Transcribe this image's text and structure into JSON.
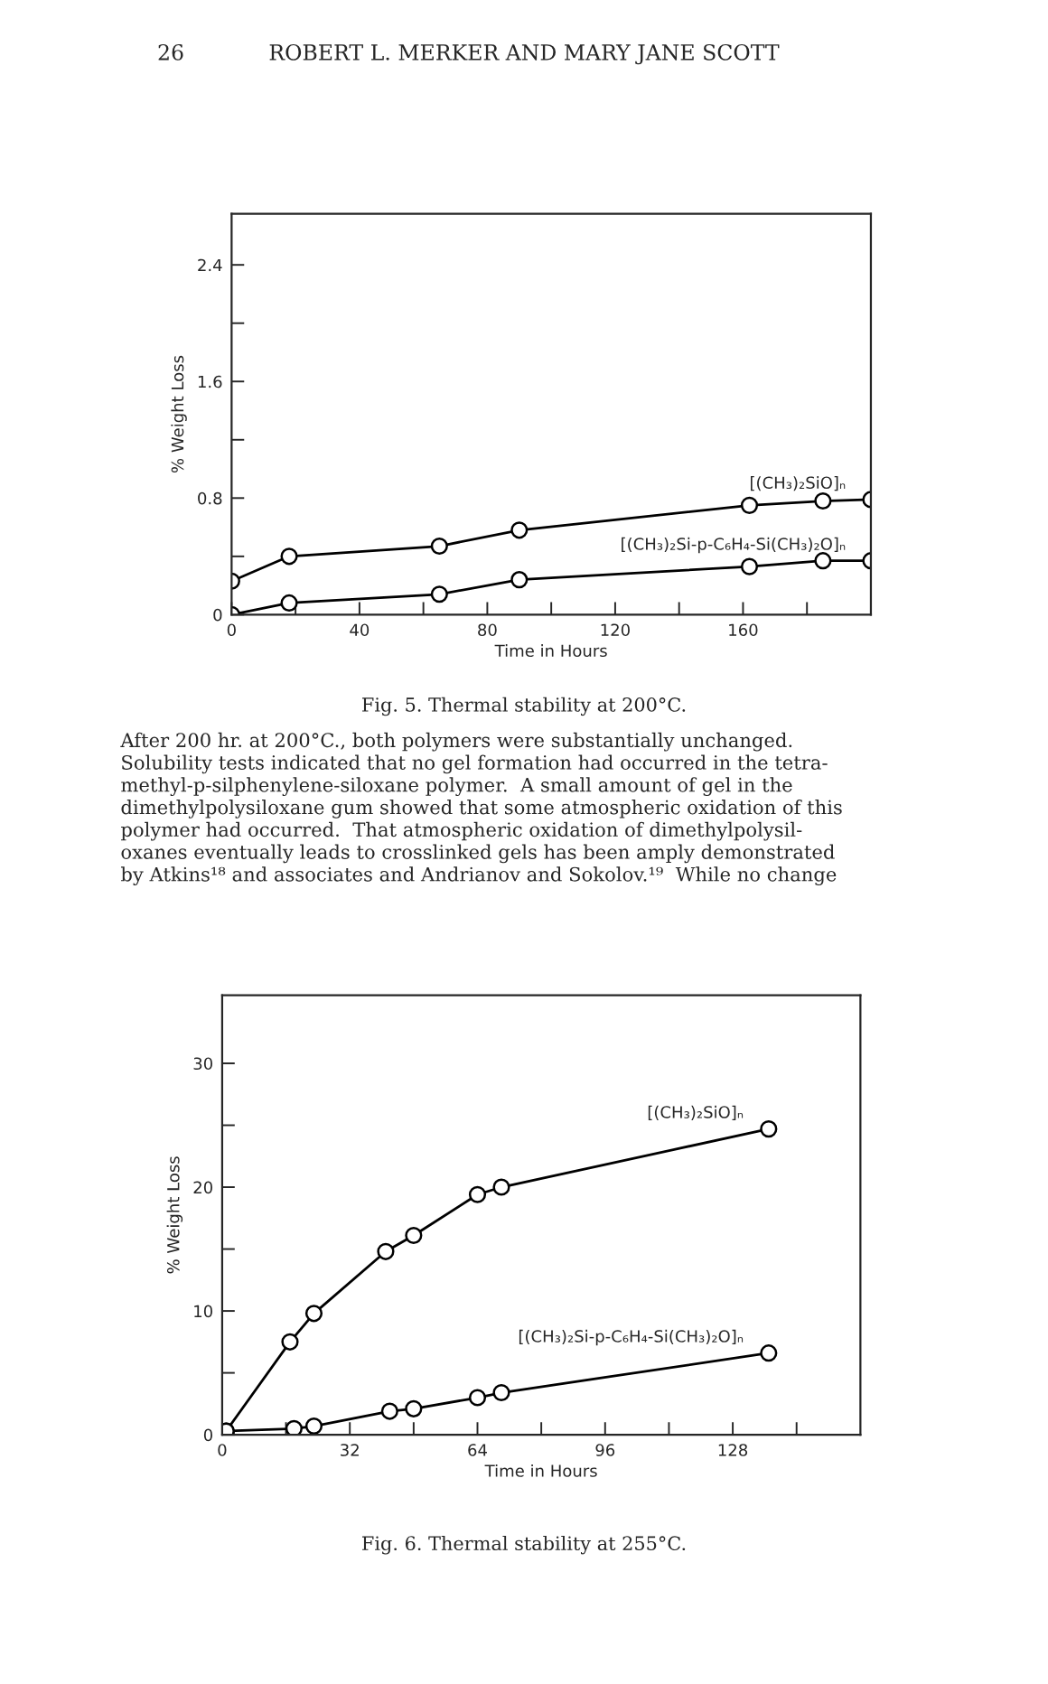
{
  "chart_data": [
    {
      "type": "line",
      "xlabel": "Time in Hours",
      "ylabel": "% Weight Loss",
      "xlim": [
        0,
        200
      ],
      "ylim": [
        0,
        2.75
      ],
      "xticks": [
        0,
        {
          "value": 20,
          "label": null
        },
        40,
        {
          "value": 60,
          "label": null
        },
        80,
        {
          "value": 100,
          "label": null
        },
        120,
        {
          "value": 140,
          "label": null
        },
        160,
        {
          "value": 180,
          "label": null
        }
      ],
      "yticks": [
        {
          "value": 0,
          "label": "0"
        },
        {
          "value": 0.4,
          "label": null
        },
        0.8,
        {
          "value": 1.2,
          "label": null
        },
        1.6,
        {
          "value": 2.0,
          "label": null
        },
        2.4
      ],
      "marker": "circle",
      "line_style": "solid",
      "grid": false,
      "legend": false,
      "series": [
        {
          "name": "[(CH₃)₂SiO]ₙ",
          "color": "#000000",
          "x": [
            0,
            18,
            65,
            90,
            162,
            185,
            200
          ],
          "values": [
            0.23,
            0.4,
            0.47,
            0.58,
            0.75,
            0.78,
            0.79
          ]
        },
        {
          "name": "[(CH₃)₂Si-p-C₆H₄-Si(CH₃)₂O]ₙ",
          "color": "#000000",
          "x": [
            0,
            18,
            65,
            90,
            162,
            185,
            200
          ],
          "values": [
            0,
            0.08,
            0.14,
            0.24,
            0.33,
            0.37,
            0.37
          ]
        }
      ],
      "annotations": [
        "26",
        "ROBERT L. MERKER AND MARY JANE SCOTT",
        "Fig. 5. Thermal stability at 200°C.",
        "After 200 hr. at 200°C., both polymers were substantially unchanged.\nSolubility tests indicated that no gel formation had occurred in the tetra-\nmethyl-p-silphenylene-siloxane polymer.  A small amount of gel in the\ndimethylpolysiloxane gum showed that some atmospheric oxidation of this\npolymer had occurred.  That atmospheric oxidation of dimethylpolysil-\noxanes eventually leads to crosslinked gels has been amply demonstrated\nby Atkins¹⁸ and associates and Andrianov and Sokolov.¹⁹  While no change"
      ]
    },
    {
      "type": "line",
      "xlabel": "Time in Hours",
      "ylabel": "% Weight Loss",
      "xlim": [
        0,
        160
      ],
      "ylim": [
        0,
        35.5
      ],
      "xticks": [
        0,
        {
          "value": 16,
          "label": null
        },
        32,
        {
          "value": 48,
          "label": null
        },
        64,
        {
          "value": 80,
          "label": null
        },
        96,
        {
          "value": 112,
          "label": null
        },
        128,
        {
          "value": 144,
          "label": null
        }
      ],
      "yticks": [
        0,
        {
          "value": 5,
          "label": null
        },
        10,
        {
          "value": 15,
          "label": null
        },
        20,
        {
          "value": 25,
          "label": null
        },
        30
      ],
      "marker": "circle",
      "line_style": "solid",
      "grid": false,
      "legend": false,
      "series": [
        {
          "name": "[(CH₃)₂SiO]ₙ",
          "color": "#000000",
          "x": [
            1,
            17,
            23,
            41,
            48,
            64,
            70,
            137
          ],
          "values": [
            0.3,
            7.5,
            9.8,
            14.8,
            16.1,
            19.4,
            20.0,
            24.7
          ]
        },
        {
          "name": "[(CH₃)₂Si-p-C₆H₄-Si(CH₃)₂O]ₙ",
          "color": "#000000",
          "x": [
            1,
            18,
            23,
            42,
            48,
            64,
            70,
            137
          ],
          "values": [
            0.3,
            0.5,
            0.7,
            1.9,
            2.1,
            3.0,
            3.4,
            6.6
          ]
        }
      ],
      "annotations": [
        "Fig. 6. Thermal stability at 255°C."
      ]
    }
  ]
}
